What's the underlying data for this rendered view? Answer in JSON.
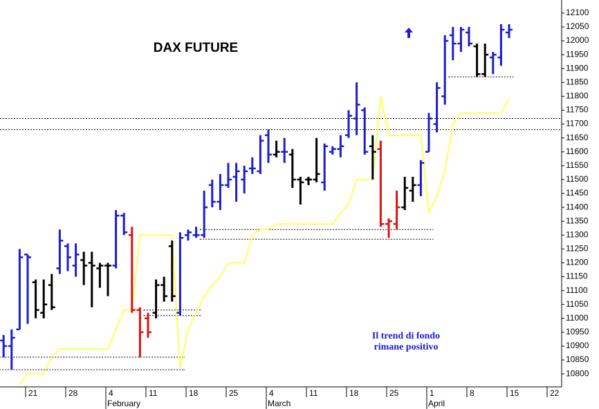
{
  "chart_data": {
    "type": "ohlc",
    "title": "DAX FUTURE",
    "annotation": [
      "Il trend di fondo",
      "rimane positivo"
    ],
    "categories": [
      null,
      null,
      null,
      "21",
      null,
      null,
      null,
      null,
      "28",
      null,
      null,
      null,
      null,
      "4",
      null,
      null,
      null,
      null,
      "11",
      null,
      null,
      null,
      null,
      "18",
      null,
      null,
      null,
      null,
      "25",
      null,
      null,
      null,
      null,
      "4",
      null,
      null,
      null,
      null,
      "11",
      null,
      null,
      null,
      null,
      "18",
      null,
      null,
      null,
      null,
      "25",
      null,
      null,
      null,
      null,
      "1",
      null,
      null,
      null,
      null,
      "8",
      null,
      null,
      null,
      null,
      "15",
      null,
      null,
      null,
      null,
      "22"
    ],
    "months": [
      "February",
      "March",
      "April"
    ],
    "open": [
      10920,
      10900,
      10960,
      11230,
      11130,
      11020,
      11120,
      11180,
      11260,
      11190,
      11210,
      11200,
      11180,
      11190,
      11190,
      11370,
      11300,
      11030,
      11000,
      11020,
      11120,
      11260,
      11020,
      11300,
      11300,
      11300,
      11480,
      11420,
      11480,
      11510,
      11500,
      11540,
      11530,
      11660,
      11590,
      11600,
      11590,
      11500,
      11500,
      11500,
      11490,
      11600,
      11610,
      11660,
      11720,
      11750,
      11620,
      11610,
      11340,
      11340,
      11400,
      11460,
      11480,
      11600,
      11700,
      11800,
      12020,
      11990,
      12030,
      11980,
      11880,
      11940,
      11940,
      12030,
      null,
      null,
      null,
      null,
      null
    ],
    "high": [
      10940,
      10960,
      11250,
      11230,
      11140,
      11140,
      11160,
      11320,
      11270,
      11270,
      11240,
      11240,
      11200,
      11200,
      11390,
      11380,
      11330,
      11040,
      11020,
      11140,
      11150,
      11280,
      11310,
      11320,
      11330,
      11460,
      11500,
      11520,
      11560,
      11560,
      11550,
      11580,
      11660,
      11680,
      11640,
      11650,
      11610,
      11510,
      11510,
      11650,
      11630,
      11620,
      11660,
      11750,
      11850,
      11760,
      11660,
      11640,
      11360,
      11460,
      11510,
      11510,
      11570,
      11740,
      11850,
      12020,
      12050,
      12050,
      12050,
      11990,
      11990,
      11960,
      12060,
      12060,
      null,
      null,
      null,
      null,
      null
    ],
    "low": [
      10860,
      10815,
      10960,
      10980,
      11000,
      11000,
      11030,
      11160,
      11170,
      11150,
      11120,
      11040,
      11110,
      11080,
      11180,
      11300,
      11020,
      10860,
      10930,
      11000,
      11060,
      11060,
      11010,
      11280,
      11290,
      11290,
      11400,
      11390,
      11470,
      11420,
      11450,
      11520,
      11520,
      11560,
      11580,
      11560,
      11470,
      11410,
      11480,
      11490,
      11460,
      11590,
      11580,
      11650,
      11660,
      11590,
      11500,
      11330,
      11290,
      11320,
      11390,
      11420,
      11440,
      11600,
      11670,
      11770,
      11930,
      11960,
      11980,
      11870,
      11870,
      11880,
      11910,
      12010,
      null,
      null,
      null,
      null,
      null
    ],
    "close": [
      10900,
      10930,
      11220,
      11220,
      11030,
      11050,
      11040,
      11280,
      11220,
      11230,
      11190,
      11190,
      11190,
      11190,
      11370,
      11310,
      11030,
      10950,
      10950,
      11120,
      11080,
      11080,
      11290,
      11310,
      11300,
      11400,
      11420,
      11480,
      11500,
      11530,
      11530,
      11540,
      11640,
      11590,
      11600,
      11600,
      11500,
      11490,
      11500,
      11520,
      11620,
      11610,
      11620,
      11730,
      11770,
      11600,
      11600,
      11340,
      11350,
      11400,
      11470,
      11480,
      11560,
      11720,
      11830,
      12000,
      11990,
      12040,
      11990,
      11880,
      11950,
      11950,
      12040,
      12040,
      null,
      null,
      null,
      null,
      null
    ],
    "bar_colors": [
      "#1c1cd0",
      "#1c1cd0",
      "#1c1cd0",
      "#1c1cd0",
      "#000000",
      "#000000",
      "#000000",
      "#1c1cd0",
      "#1c1cd0",
      "#1c1cd0",
      "#000000",
      "#000000",
      "#000000",
      "#000000",
      "#1c1cd0",
      "#1c1cd0",
      "#e01010",
      "#e01010",
      "#e01010",
      "#000000",
      "#000000",
      "#000000",
      "#1c1cd0",
      "#1c1cd0",
      "#1c1cd0",
      "#1c1cd0",
      "#1c1cd0",
      "#1c1cd0",
      "#1c1cd0",
      "#1c1cd0",
      "#1c1cd0",
      "#1c1cd0",
      "#1c1cd0",
      "#1c1cd0",
      "#000000",
      "#1c1cd0",
      "#000000",
      "#000000",
      "#000000",
      "#000000",
      "#1c1cd0",
      "#1c1cd0",
      "#1c1cd0",
      "#1c1cd0",
      "#1c1cd0",
      "#1c1cd0",
      "#000000",
      "#e01010",
      "#e01010",
      "#e01010",
      "#000000",
      "#000000",
      "#1c1cd0",
      "#1c1cd0",
      "#1c1cd0",
      "#1c1cd0",
      "#1c1cd0",
      "#1c1cd0",
      "#1c1cd0",
      "#000000",
      "#000000",
      "#1c1cd0",
      "#1c1cd0",
      "#1c1cd0",
      null,
      null,
      null,
      null,
      null
    ],
    "stop_line": {
      "color": "#ffff33",
      "values": [
        null,
        null,
        10760,
        10800,
        10800,
        10800,
        10860,
        10890,
        10890,
        10890,
        10890,
        10890,
        10890,
        10890,
        10960,
        11030,
        11030,
        11300,
        11300,
        11300,
        11300,
        11300,
        10820,
        10960,
        11020,
        11080,
        11120,
        11150,
        11200,
        11200,
        11200,
        11300,
        11320,
        11320,
        11340,
        11340,
        11340,
        11340,
        11340,
        11340,
        11340,
        11340,
        11380,
        11410,
        11500,
        11500,
        11500,
        11800,
        11660,
        11660,
        11660,
        11660,
        11660,
        11380,
        11440,
        11530,
        11700,
        11740,
        11740,
        11740,
        11740,
        11740,
        11740,
        11790,
        null,
        null,
        null,
        null,
        null
      ]
    },
    "levels": [
      {
        "value": 11720
      },
      {
        "value": 11680
      },
      {
        "value": 10860,
        "from": 0,
        "to": 22
      },
      {
        "value": 10815,
        "from": 0,
        "to": 22
      },
      {
        "value": 11030,
        "from": 18,
        "to": 24
      },
      {
        "value": 11010,
        "from": 18,
        "to": 24
      },
      {
        "value": 11320,
        "from": 25,
        "to": 53
      },
      {
        "value": 11285,
        "from": 25,
        "to": 53
      },
      {
        "value": 11870,
        "from": 56,
        "to": 63
      }
    ],
    "ylim": [
      10753,
      12147
    ],
    "yticks": [
      10800,
      10850,
      10900,
      10950,
      11000,
      11050,
      11100,
      11150,
      11200,
      11250,
      11300,
      11350,
      11400,
      11450,
      11500,
      11550,
      11600,
      11650,
      11700,
      11750,
      11800,
      11850,
      11900,
      11950,
      12000,
      12050,
      12100
    ]
  }
}
